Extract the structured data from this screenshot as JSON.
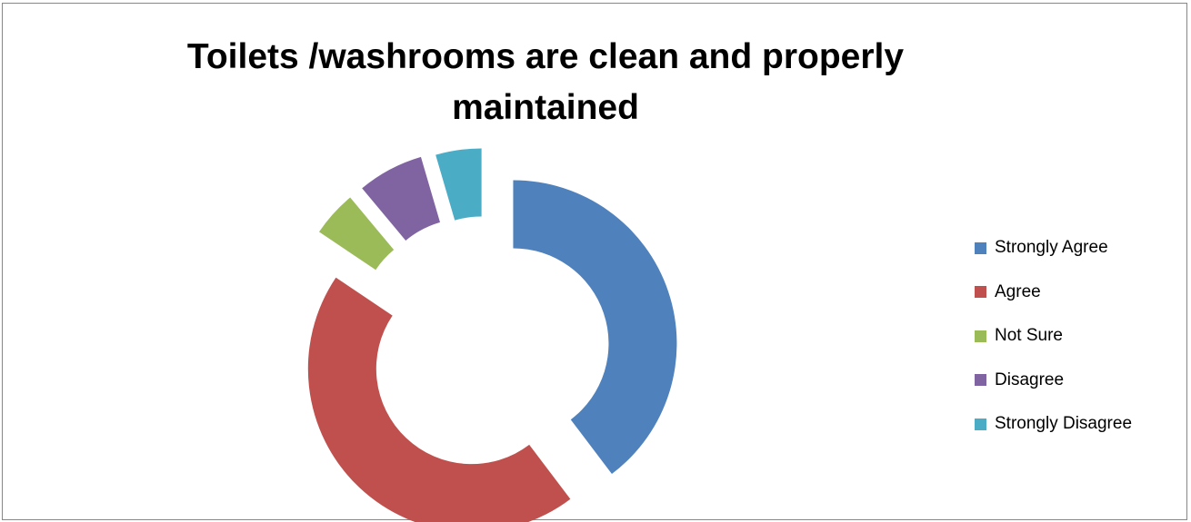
{
  "chart_data": {
    "type": "doughnut",
    "title": "Toilets /washrooms are clean and properly maintained",
    "categories": [
      "Strongly Agree",
      "Agree",
      "Not Sure",
      "Disagree",
      "Strongly Disagree"
    ],
    "values": [
      39.5,
      44.5,
      4.5,
      6.5,
      4.5
    ],
    "unit": "percent (estimated)",
    "colors": [
      "#4f81bd",
      "#c0504d",
      "#9bbb59",
      "#8064a2",
      "#4bacc6"
    ],
    "exploded": true,
    "legend": {
      "position": "right",
      "items": [
        {
          "label": "Strongly Agree",
          "color": "#4f81bd"
        },
        {
          "label": "Agree",
          "color": "#c0504d"
        },
        {
          "label": "Not Sure",
          "color": "#9bbb59"
        },
        {
          "label": "Disagree",
          "color": "#8064a2"
        },
        {
          "label": "Strongly Disagree",
          "color": "#4bacc6"
        }
      ]
    }
  }
}
